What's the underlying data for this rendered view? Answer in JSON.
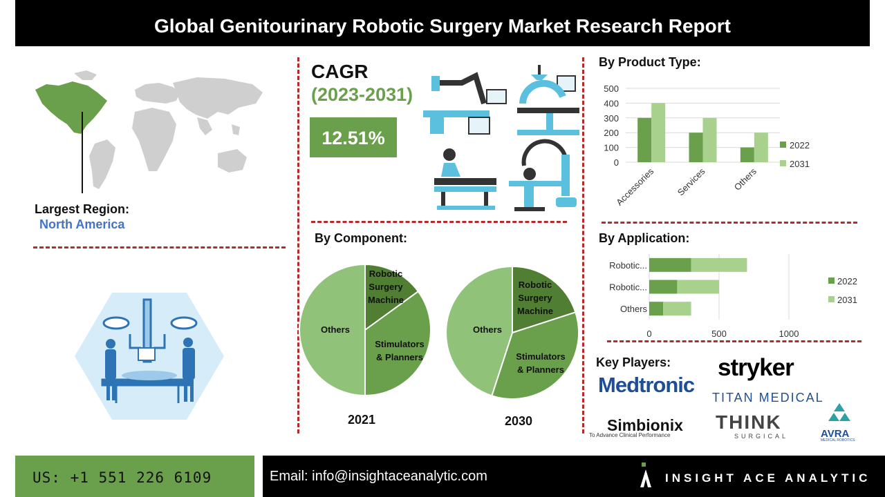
{
  "title": "Global Genitourinary Robotic Surgery Market Research Report",
  "region": {
    "label": "Largest Region:",
    "value": "North America"
  },
  "cagr": {
    "label": "CAGR",
    "years": "(2023-2031)",
    "value": "12.51%"
  },
  "sections": {
    "product_type": "By Product Type:",
    "component": "By Component:",
    "application": "By Application:",
    "key_players": "Key Players:"
  },
  "key_players": [
    "Medtronic",
    "stryker",
    "TITAN MEDICAL",
    "Simbionix",
    "To Advance Clinical Performance",
    "THINK",
    "SURGICAL",
    "AVRA",
    "MEDICAL ROBOTICS"
  ],
  "footer": {
    "phone": "US: +1 551 226 6109",
    "email": "Email: info@insightaceanalytic.com",
    "brand": "INSIGHT ACE ANALYTIC"
  },
  "colors": {
    "dark_green": "#6aa04b",
    "light_green": "#a9d18e",
    "pie_dark": "#507e32",
    "pie_mid": "#6aa04b",
    "pie_light": "#90c27a",
    "accent_red": "#b52a2a",
    "blue": "#4472c4"
  },
  "chart_data": [
    {
      "type": "bar",
      "title": "By Product Type:",
      "categories": [
        "Accessories",
        "Services",
        "Others"
      ],
      "series": [
        {
          "name": "2022",
          "values": [
            300,
            200,
            100
          ]
        },
        {
          "name": "2031",
          "values": [
            400,
            300,
            200
          ]
        }
      ],
      "ylim": [
        0,
        500
      ],
      "yticks": [
        "500",
        "400",
        "300",
        "200",
        "100",
        "0"
      ],
      "legend": "right"
    },
    {
      "type": "pie",
      "title": "By Component:",
      "label": "2021",
      "slices": [
        {
          "name": "Robotic Surgery Machine",
          "value": 15
        },
        {
          "name": "Stimulators & Planners",
          "value": 35
        },
        {
          "name": "Others",
          "value": 50
        }
      ]
    },
    {
      "type": "pie",
      "title": "By Component:",
      "label": "2030",
      "slices": [
        {
          "name": "Robotic Surgery Machine",
          "value": 20
        },
        {
          "name": "Stimulators & Planners",
          "value": 35
        },
        {
          "name": "Others",
          "value": 45
        }
      ]
    },
    {
      "type": "bar",
      "orientation": "horizontal",
      "stacked": true,
      "title": "By Application:",
      "categories": [
        "Robotic...",
        "Robotic...",
        "Others"
      ],
      "series": [
        {
          "name": "2022",
          "values": [
            300,
            200,
            100
          ]
        },
        {
          "name": "2031",
          "values": [
            400,
            300,
            200
          ]
        }
      ],
      "xlim": [
        0,
        1000
      ],
      "xticks": [
        "0",
        "500",
        "1000"
      ],
      "legend": "right"
    }
  ]
}
